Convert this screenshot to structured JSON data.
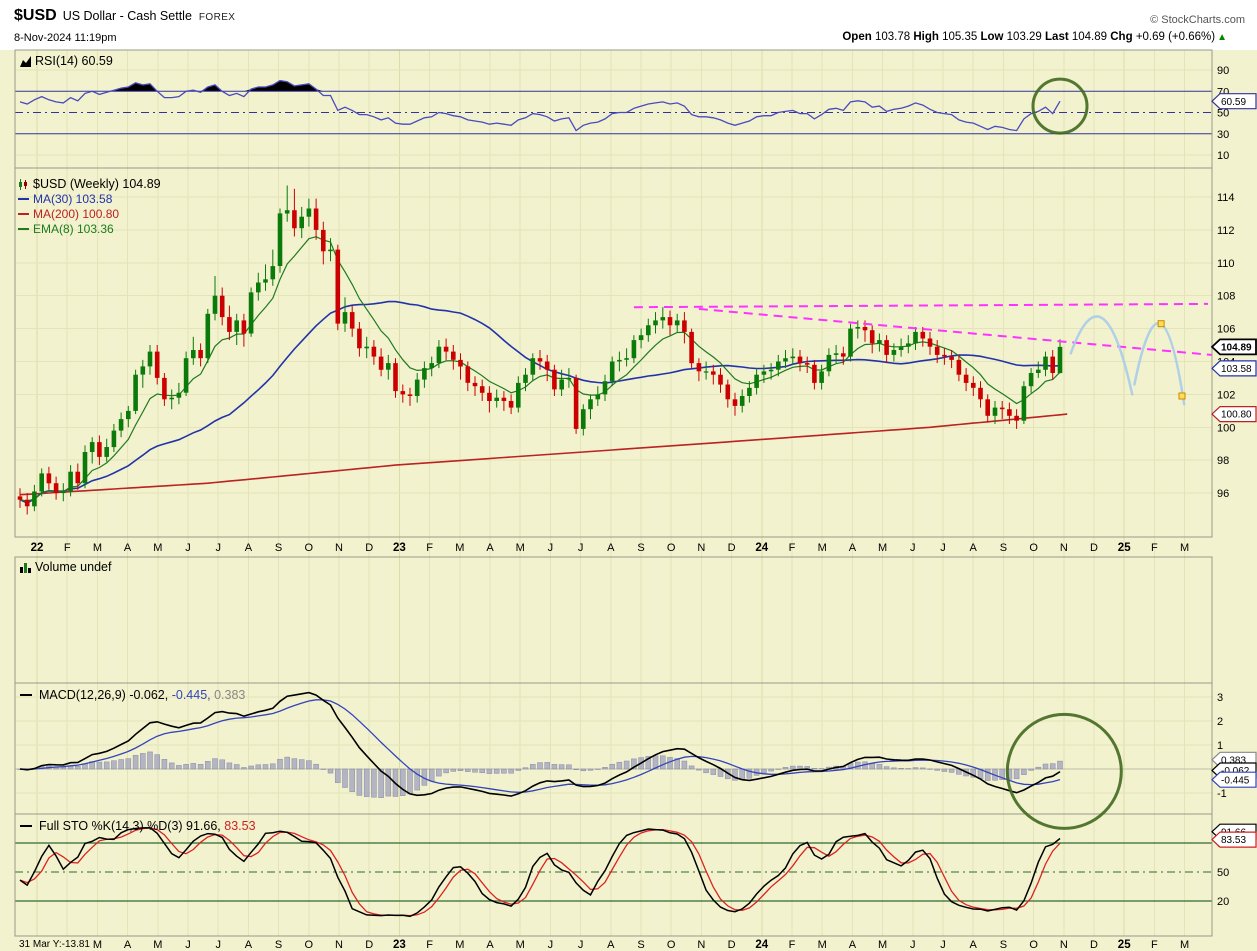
{
  "header": {
    "symbol": "$USD",
    "name": "US Dollar - Cash Settle",
    "exchange": "FOREX",
    "copyright": "© StockCharts.com",
    "datetime": "8-Nov-2024 11:19pm",
    "quote": {
      "parts": [
        {
          "t": "Open ",
          "b": 1
        },
        {
          "t": "103.78 "
        },
        {
          "t": "High ",
          "b": 1
        },
        {
          "t": "105.35 "
        },
        {
          "t": "Low ",
          "b": 1
        },
        {
          "t": "103.29 "
        },
        {
          "t": "Last ",
          "b": 1
        },
        {
          "t": "104.89 "
        },
        {
          "t": "Chg ",
          "b": 1
        },
        {
          "t": "+0.69 (+0.66%)"
        }
      ],
      "arrow": "▲"
    }
  },
  "panels": {
    "rsi": {
      "label": "RSI(14) 60.59",
      "tag": "60.59",
      "ticks": [
        90,
        70,
        50,
        30,
        10
      ]
    },
    "main": {
      "title": "$USD (Weekly) 104.89",
      "legend": [
        {
          "text": "MA(30) 103.58",
          "color": "#2233AA"
        },
        {
          "text": "MA(200) 100.80",
          "color": "#BB2222"
        },
        {
          "text": "EMA(8) 103.36",
          "color": "#1F7A1F"
        }
      ],
      "ticks": [
        114,
        112,
        110,
        108,
        106,
        104,
        102,
        100,
        98,
        96
      ],
      "tags": [
        {
          "text": "104.89",
          "value": 104.89,
          "color": "#000000",
          "bold": true
        },
        {
          "text": "103.58",
          "value": 103.58,
          "color": "#2233AA"
        },
        {
          "text": "100.80",
          "value": 100.8,
          "color": "#BB2222"
        }
      ]
    },
    "volume": {
      "label": "Volume undef"
    },
    "macd": {
      "label_parts": [
        {
          "t": "MACD(12,26,9) "
        },
        {
          "t": "-0.062, "
        },
        {
          "t": "-0.445, ",
          "c": "#3344BB"
        },
        {
          "t": "0.383",
          "c": "#888888"
        }
      ],
      "ticks": [
        3,
        2,
        1,
        -1
      ],
      "tags": [
        {
          "text": "0.383",
          "value": 0.383,
          "color": "#888888"
        },
        {
          "text": "-0.062",
          "value": -0.062,
          "color": "#000000"
        },
        {
          "text": "-0.445",
          "value": -0.445,
          "color": "#3344BB"
        }
      ]
    },
    "sto": {
      "label_parts": [
        {
          "t": "Full STO %K(14,3) %D(3) 91.66, "
        },
        {
          "t": "83.53",
          "c": "#CC2222"
        }
      ],
      "ticks": [
        80,
        50,
        20
      ],
      "tags": [
        {
          "text": "91.66",
          "value": 91.66,
          "color": "#000000"
        },
        {
          "text": "83.53",
          "value": 83.53,
          "color": "#CC2222"
        }
      ]
    }
  },
  "xaxis": {
    "labels": [
      "22",
      "F",
      "M",
      "A",
      "M",
      "J",
      "J",
      "A",
      "S",
      "O",
      "N",
      "D",
      "23",
      "F",
      "M",
      "A",
      "M",
      "J",
      "J",
      "A",
      "S",
      "O",
      "N",
      "D",
      "24",
      "F",
      "M",
      "A",
      "M",
      "J",
      "J",
      "A",
      "S",
      "O",
      "N",
      "D",
      "25",
      "F",
      "M"
    ],
    "bottom_left_readout": "31 Mar Y:-13.81"
  },
  "colors": {
    "bg": "#F2F2CE",
    "grid": "#E4E4B8",
    "grid_dark": "#DCDCA8",
    "border": "#9A9A8A",
    "up": "#0A7A0A",
    "down": "#CC0000",
    "ma30": "#2233AA",
    "ma200": "#BB2222",
    "ema8": "#1F7A1F",
    "rsi": "#4A4AC0",
    "rsi_band": "#333399",
    "macd_signal": "#3344BB",
    "macd_hist": "#9094BB",
    "sto_k": "#000000",
    "sto_d": "#DD2222",
    "sto_band": "#2E6B2E",
    "trend": "#FF33FF",
    "proj": "#A8CCEA",
    "proj_square_fill": "#FFDD55",
    "proj_square_stroke": "#CC8800",
    "annotation": "#41691F",
    "chg_up": "#008800"
  },
  "chart_data": {
    "type": "candlestick",
    "symbol": "$USD",
    "timeframe": "weekly",
    "title": "$USD (Weekly) 104.89",
    "ylim": [
      94.5,
      115.5
    ],
    "last": 104.89,
    "indicators": {
      "rsi_last": 60.59,
      "ma30_last": 103.58,
      "ma200_last": 100.8,
      "ema8_last": 103.36,
      "macd": -0.062,
      "macd_signal": -0.445,
      "macd_hist": 0.383,
      "sto_k": 91.66,
      "sto_d": 83.53,
      "volume": "undef"
    },
    "candles": [
      [
        95.8,
        96.3,
        95.1,
        95.6
      ],
      [
        95.6,
        96.0,
        94.7,
        95.2
      ],
      [
        95.2,
        96.5,
        94.9,
        96.1
      ],
      [
        96.1,
        97.5,
        95.8,
        97.2
      ],
      [
        97.2,
        97.6,
        96.2,
        96.6
      ],
      [
        96.6,
        97.0,
        95.6,
        96.0
      ],
      [
        96.0,
        96.6,
        95.5,
        96.1
      ],
      [
        96.1,
        97.7,
        95.8,
        97.3
      ],
      [
        97.3,
        97.8,
        96.2,
        96.6
      ],
      [
        96.6,
        98.9,
        96.3,
        98.5
      ],
      [
        98.5,
        99.4,
        97.8,
        99.1
      ],
      [
        99.1,
        99.5,
        97.7,
        98.2
      ],
      [
        98.2,
        99.3,
        97.9,
        98.8
      ],
      [
        98.8,
        100.2,
        98.5,
        99.8
      ],
      [
        99.8,
        100.9,
        99.4,
        100.5
      ],
      [
        100.5,
        101.3,
        100.0,
        101.0
      ],
      [
        101.0,
        103.5,
        100.8,
        103.2
      ],
      [
        103.2,
        104.1,
        102.4,
        103.7
      ],
      [
        103.7,
        105.0,
        103.2,
        104.6
      ],
      [
        104.6,
        105.0,
        102.6,
        103.0
      ],
      [
        103.0,
        103.3,
        101.3,
        101.7
      ],
      [
        101.7,
        102.3,
        101.1,
        101.8
      ],
      [
        101.8,
        102.7,
        101.4,
        102.1
      ],
      [
        102.1,
        104.6,
        101.9,
        104.2
      ],
      [
        104.2,
        105.5,
        103.8,
        104.7
      ],
      [
        104.7,
        105.1,
        103.7,
        104.2
      ],
      [
        104.2,
        107.2,
        103.9,
        106.9
      ],
      [
        106.9,
        109.2,
        106.5,
        108.0
      ],
      [
        108.0,
        108.5,
        106.2,
        106.7
      ],
      [
        106.7,
        107.4,
        105.3,
        105.8
      ],
      [
        105.8,
        106.9,
        105.0,
        106.5
      ],
      [
        106.5,
        106.9,
        104.9,
        105.7
      ],
      [
        105.7,
        108.5,
        105.5,
        108.2
      ],
      [
        108.2,
        109.4,
        107.7,
        108.8
      ],
      [
        108.8,
        109.9,
        108.3,
        109.0
      ],
      [
        109.0,
        110.8,
        108.6,
        109.8
      ],
      [
        109.8,
        113.3,
        109.4,
        113.0
      ],
      [
        113.0,
        114.7,
        112.5,
        113.2
      ],
      [
        113.2,
        114.5,
        111.6,
        112.1
      ],
      [
        112.1,
        113.4,
        111.5,
        112.8
      ],
      [
        112.8,
        113.9,
        112.2,
        113.3
      ],
      [
        113.3,
        113.9,
        111.4,
        112.0
      ],
      [
        112.0,
        112.5,
        109.9,
        110.7
      ],
      [
        110.7,
        111.5,
        110.1,
        110.8
      ],
      [
        110.8,
        111.1,
        105.9,
        106.3
      ],
      [
        106.3,
        107.9,
        105.8,
        107.0
      ],
      [
        107.0,
        107.4,
        105.5,
        106.0
      ],
      [
        106.0,
        106.4,
        104.3,
        104.8
      ],
      [
        104.8,
        105.5,
        104.2,
        104.9
      ],
      [
        104.9,
        105.3,
        103.8,
        104.3
      ],
      [
        104.3,
        104.8,
        103.1,
        103.5
      ],
      [
        103.5,
        104.4,
        102.9,
        103.9
      ],
      [
        103.9,
        104.2,
        101.8,
        102.2
      ],
      [
        102.2,
        102.6,
        101.5,
        102.0
      ],
      [
        102.0,
        102.4,
        101.3,
        101.9
      ],
      [
        101.9,
        103.3,
        101.5,
        102.9
      ],
      [
        102.9,
        104.0,
        102.4,
        103.6
      ],
      [
        103.6,
        104.3,
        103.1,
        103.9
      ],
      [
        103.9,
        105.3,
        103.6,
        104.9
      ],
      [
        104.9,
        105.4,
        104.1,
        104.6
      ],
      [
        104.6,
        105.0,
        103.5,
        104.1
      ],
      [
        104.1,
        104.5,
        102.9,
        103.7
      ],
      [
        103.7,
        104.0,
        102.2,
        102.7
      ],
      [
        102.7,
        103.1,
        101.9,
        102.5
      ],
      [
        102.5,
        102.9,
        101.6,
        102.1
      ],
      [
        102.1,
        102.5,
        100.9,
        101.6
      ],
      [
        101.6,
        102.3,
        101.2,
        101.8
      ],
      [
        101.8,
        102.2,
        101.0,
        101.6
      ],
      [
        101.6,
        102.0,
        100.8,
        101.2
      ],
      [
        101.2,
        103.1,
        100.9,
        102.7
      ],
      [
        102.7,
        103.6,
        102.2,
        103.2
      ],
      [
        103.2,
        104.5,
        102.8,
        104.2
      ],
      [
        104.2,
        104.7,
        103.5,
        104.0
      ],
      [
        104.0,
        104.4,
        102.8,
        103.5
      ],
      [
        103.5,
        103.8,
        101.9,
        102.3
      ],
      [
        102.3,
        103.5,
        101.9,
        102.9
      ],
      [
        102.9,
        103.6,
        102.4,
        103.0
      ],
      [
        103.0,
        103.2,
        99.6,
        99.9
      ],
      [
        99.9,
        101.4,
        99.5,
        101.1
      ],
      [
        101.1,
        102.0,
        100.5,
        101.7
      ],
      [
        101.7,
        102.5,
        101.3,
        102.0
      ],
      [
        102.0,
        103.2,
        101.6,
        102.8
      ],
      [
        102.8,
        104.3,
        102.5,
        104.0
      ],
      [
        104.0,
        104.6,
        103.4,
        104.1
      ],
      [
        104.1,
        104.8,
        103.7,
        104.2
      ],
      [
        104.2,
        105.6,
        103.9,
        105.3
      ],
      [
        105.3,
        106.0,
        104.8,
        105.6
      ],
      [
        105.6,
        106.6,
        105.2,
        106.2
      ],
      [
        106.2,
        107.0,
        105.7,
        106.5
      ],
      [
        106.5,
        107.3,
        106.0,
        106.7
      ],
      [
        106.7,
        107.1,
        105.6,
        106.2
      ],
      [
        106.2,
        106.9,
        105.8,
        106.5
      ],
      [
        106.5,
        107.0,
        105.1,
        105.8
      ],
      [
        105.8,
        106.0,
        103.6,
        103.9
      ],
      [
        103.9,
        104.2,
        102.8,
        103.4
      ],
      [
        103.4,
        104.0,
        102.9,
        103.4
      ],
      [
        103.4,
        103.8,
        102.6,
        103.2
      ],
      [
        103.2,
        103.6,
        102.1,
        102.6
      ],
      [
        102.6,
        102.9,
        101.2,
        101.7
      ],
      [
        101.7,
        102.1,
        100.7,
        101.3
      ],
      [
        101.3,
        102.3,
        100.9,
        101.9
      ],
      [
        101.9,
        102.8,
        101.5,
        102.4
      ],
      [
        102.4,
        103.6,
        102.0,
        103.2
      ],
      [
        103.2,
        103.8,
        102.7,
        103.4
      ],
      [
        103.4,
        103.9,
        102.9,
        103.5
      ],
      [
        103.5,
        104.4,
        103.1,
        104.0
      ],
      [
        104.0,
        104.7,
        103.6,
        104.2
      ],
      [
        104.2,
        104.8,
        103.8,
        104.3
      ],
      [
        104.3,
        104.7,
        103.4,
        103.9
      ],
      [
        103.9,
        104.3,
        103.3,
        103.8
      ],
      [
        103.8,
        104.1,
        102.3,
        102.7
      ],
      [
        102.7,
        103.8,
        102.3,
        103.4
      ],
      [
        103.4,
        104.8,
        103.1,
        104.4
      ],
      [
        104.4,
        105.0,
        103.9,
        104.5
      ],
      [
        104.5,
        104.9,
        103.8,
        104.3
      ],
      [
        104.3,
        106.3,
        104.0,
        106.0
      ],
      [
        106.0,
        106.5,
        105.4,
        106.1
      ],
      [
        106.1,
        106.5,
        105.2,
        105.9
      ],
      [
        105.9,
        106.2,
        104.5,
        105.1
      ],
      [
        105.1,
        105.7,
        104.6,
        105.3
      ],
      [
        105.3,
        105.6,
        103.9,
        104.4
      ],
      [
        104.4,
        105.1,
        104.0,
        104.7
      ],
      [
        104.7,
        105.4,
        104.3,
        104.9
      ],
      [
        104.9,
        105.6,
        104.5,
        105.1
      ],
      [
        105.1,
        106.1,
        104.7,
        105.8
      ],
      [
        105.8,
        106.1,
        104.9,
        105.4
      ],
      [
        105.4,
        105.8,
        104.4,
        104.9
      ],
      [
        104.9,
        105.3,
        103.9,
        104.4
      ],
      [
        104.4,
        104.8,
        103.8,
        104.3
      ],
      [
        104.3,
        104.7,
        103.6,
        104.1
      ],
      [
        104.1,
        104.4,
        102.8,
        103.2
      ],
      [
        103.2,
        103.6,
        102.2,
        102.7
      ],
      [
        102.7,
        103.1,
        101.9,
        102.4
      ],
      [
        102.4,
        102.8,
        101.2,
        101.7
      ],
      [
        101.7,
        102.0,
        100.3,
        100.7
      ],
      [
        100.7,
        101.6,
        100.2,
        101.2
      ],
      [
        101.2,
        101.6,
        100.5,
        101.1
      ],
      [
        101.1,
        101.5,
        100.2,
        100.7
      ],
      [
        100.7,
        101.1,
        99.9,
        100.4
      ],
      [
        100.4,
        102.8,
        100.2,
        102.5
      ],
      [
        102.5,
        103.6,
        102.1,
        103.3
      ],
      [
        103.3,
        104.0,
        103.0,
        103.5
      ],
      [
        103.5,
        104.6,
        103.1,
        104.3
      ],
      [
        104.3,
        104.7,
        102.9,
        103.3
      ],
      [
        103.3,
        105.35,
        103.29,
        104.89
      ]
    ],
    "rsi14": [
      60,
      58,
      62,
      65,
      62,
      60,
      59,
      64,
      61,
      68,
      70,
      67,
      69,
      71,
      73,
      74,
      78,
      76,
      77,
      70,
      64,
      64,
      65,
      70,
      71,
      69,
      74,
      76,
      70,
      66,
      68,
      65,
      72,
      74,
      74,
      76,
      80,
      79,
      75,
      76,
      77,
      72,
      66,
      66,
      52,
      55,
      52,
      48,
      48,
      46,
      43,
      45,
      40,
      39,
      39,
      42,
      45,
      46,
      50,
      49,
      47,
      46,
      43,
      42,
      41,
      39,
      40,
      39,
      38,
      43,
      45,
      49,
      48,
      46,
      42,
      44,
      45,
      33,
      38,
      40,
      41,
      44,
      49,
      50,
      50,
      54,
      56,
      58,
      59,
      60,
      58,
      59,
      56,
      48,
      46,
      46,
      45,
      43,
      40,
      38,
      40,
      42,
      46,
      47,
      47,
      50,
      51,
      52,
      49,
      49,
      44,
      48,
      53,
      54,
      52,
      60,
      61,
      60,
      55,
      56,
      51,
      53,
      54,
      56,
      59,
      57,
      53,
      50,
      49,
      48,
      43,
      41,
      40,
      37,
      34,
      37,
      36,
      34,
      33,
      44,
      49,
      51,
      55,
      49,
      60.59
    ],
    "ma200_anchors": [
      [
        0,
        95.9
      ],
      [
        26,
        96.6
      ],
      [
        52,
        97.7
      ],
      [
        78,
        98.5
      ],
      [
        104,
        99.3
      ],
      [
        126,
        100.0
      ],
      [
        145,
        100.8
      ]
    ],
    "trendlines": [
      {
        "from": [
          85,
          107.3
        ],
        "to": [
          164.5,
          107.5
        ]
      },
      {
        "from": [
          94,
          107.2
        ],
        "to": [
          165,
          104.4
        ]
      }
    ],
    "projection": {
      "arcs": [
        [
          [
            145.5,
            104.5
          ],
          [
            150,
            110.0
          ],
          [
            154,
            102.0
          ]
        ],
        [
          [
            154.3,
            102.6
          ],
          [
            158,
            110.6
          ],
          [
            161.2,
            101.4
          ]
        ]
      ],
      "squares": [
        [
          158,
          106.3
        ],
        [
          160.9,
          101.9
        ]
      ]
    },
    "annotations": {
      "circles": [
        {
          "panel": "rsi",
          "week": 144,
          "value": 56,
          "r": 27
        },
        {
          "panel": "macd",
          "week": 144.6,
          "value": -0.1,
          "r": 57
        }
      ]
    }
  }
}
